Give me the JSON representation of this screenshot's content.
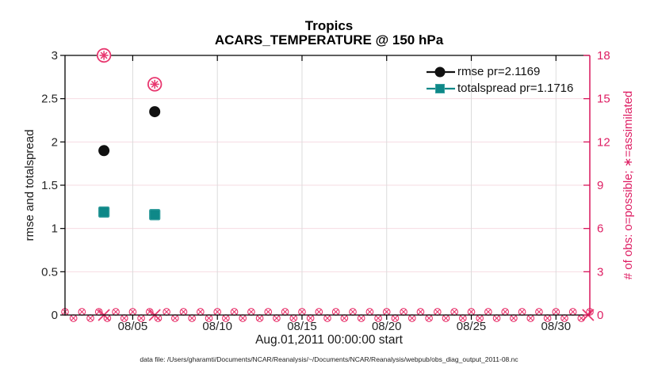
{
  "figure": {
    "title": "Tropics",
    "subtitle": "ACARS_TEMPERATURE @ 150 hPa",
    "xlabel": "Aug.01,2011 00:00:00 start",
    "ylabel_left": "rmse and totalspread",
    "ylabel_right": "# of obs: o=possible; ∗=assimilated",
    "caption": "data file: /Users/gharamti/Documents/NCAR/Reanalysis/~/Documents/NCAR/Reanalysis/webpub/obs_diag_output_2011-08.nc"
  },
  "colors": {
    "axis_black": "#000000",
    "tick_text": "#262626",
    "axis_pink": "#d8165b",
    "pink_text": "#de1e63",
    "marker_pink": "#e8376f",
    "teal": "#0e8888",
    "teal_rim": "#3aa0a0",
    "black_marker": "#111111",
    "grid_horizontal": "#f6dbe2",
    "grid_vertical": "#dcdcdc"
  },
  "chart_data": {
    "type": "scatter",
    "title": "Tropics",
    "subtitle": "ACARS_TEMPERATURE @ 150 hPa",
    "xlabel": "Aug.01,2011 00:00:00 start",
    "grid": true,
    "legend_position": "top-right",
    "x_axis": {
      "range_days": [
        1,
        32
      ],
      "tick_days": [
        5,
        10,
        15,
        20,
        25,
        30
      ],
      "tick_labels": [
        "08/05",
        "08/10",
        "08/15",
        "08/20",
        "08/25",
        "08/30"
      ]
    },
    "y_left": {
      "label": "rmse and totalspread",
      "lim": [
        0,
        3
      ],
      "ticks": [
        0,
        0.5,
        1,
        1.5,
        2,
        2.5,
        3
      ],
      "tick_labels": [
        "0",
        "0.5",
        "1",
        "1.5",
        "2",
        "2.5",
        "3"
      ]
    },
    "y_right": {
      "label": "# of obs: o=possible; ∗=assimilated",
      "lim": [
        0,
        18
      ],
      "ticks": [
        0,
        3,
        6,
        9,
        12,
        15,
        18
      ],
      "tick_labels": [
        "0",
        "3",
        "6",
        "9",
        "12",
        "15",
        "18"
      ]
    },
    "series": [
      {
        "name": "rmse pr=2.1169",
        "marker": "filled-circle",
        "color": "#111111",
        "y_axis": "left",
        "points": [
          {
            "day": 3.3,
            "value": 1.9
          },
          {
            "day": 6.3,
            "value": 2.35
          }
        ]
      },
      {
        "name": "totalspread pr=1.1716",
        "marker": "filled-square",
        "color": "#0e8888",
        "y_axis": "left",
        "points": [
          {
            "day": 3.3,
            "value": 1.19
          },
          {
            "day": 6.3,
            "value": 1.16
          }
        ]
      },
      {
        "name": "number of obs possible and assimilated",
        "marker": "circle-asterisk",
        "color": "#e8376f",
        "y_axis": "right",
        "points": [
          {
            "day": 3.3,
            "value": 18
          },
          {
            "day": 6.3,
            "value": 16
          }
        ]
      }
    ],
    "zero_obs_band": {
      "marker": "circle-x",
      "color": "#e8376f",
      "y_axis": "right",
      "value": 0,
      "from_day": 1,
      "to_day": 32,
      "step_days": 0.5,
      "highlight_days": [
        3.3,
        6.3,
        31.9
      ]
    }
  },
  "legend": {
    "entries": [
      {
        "label": "rmse pr=2.1169"
      },
      {
        "label": "totalspread pr=1.1716"
      }
    ]
  }
}
